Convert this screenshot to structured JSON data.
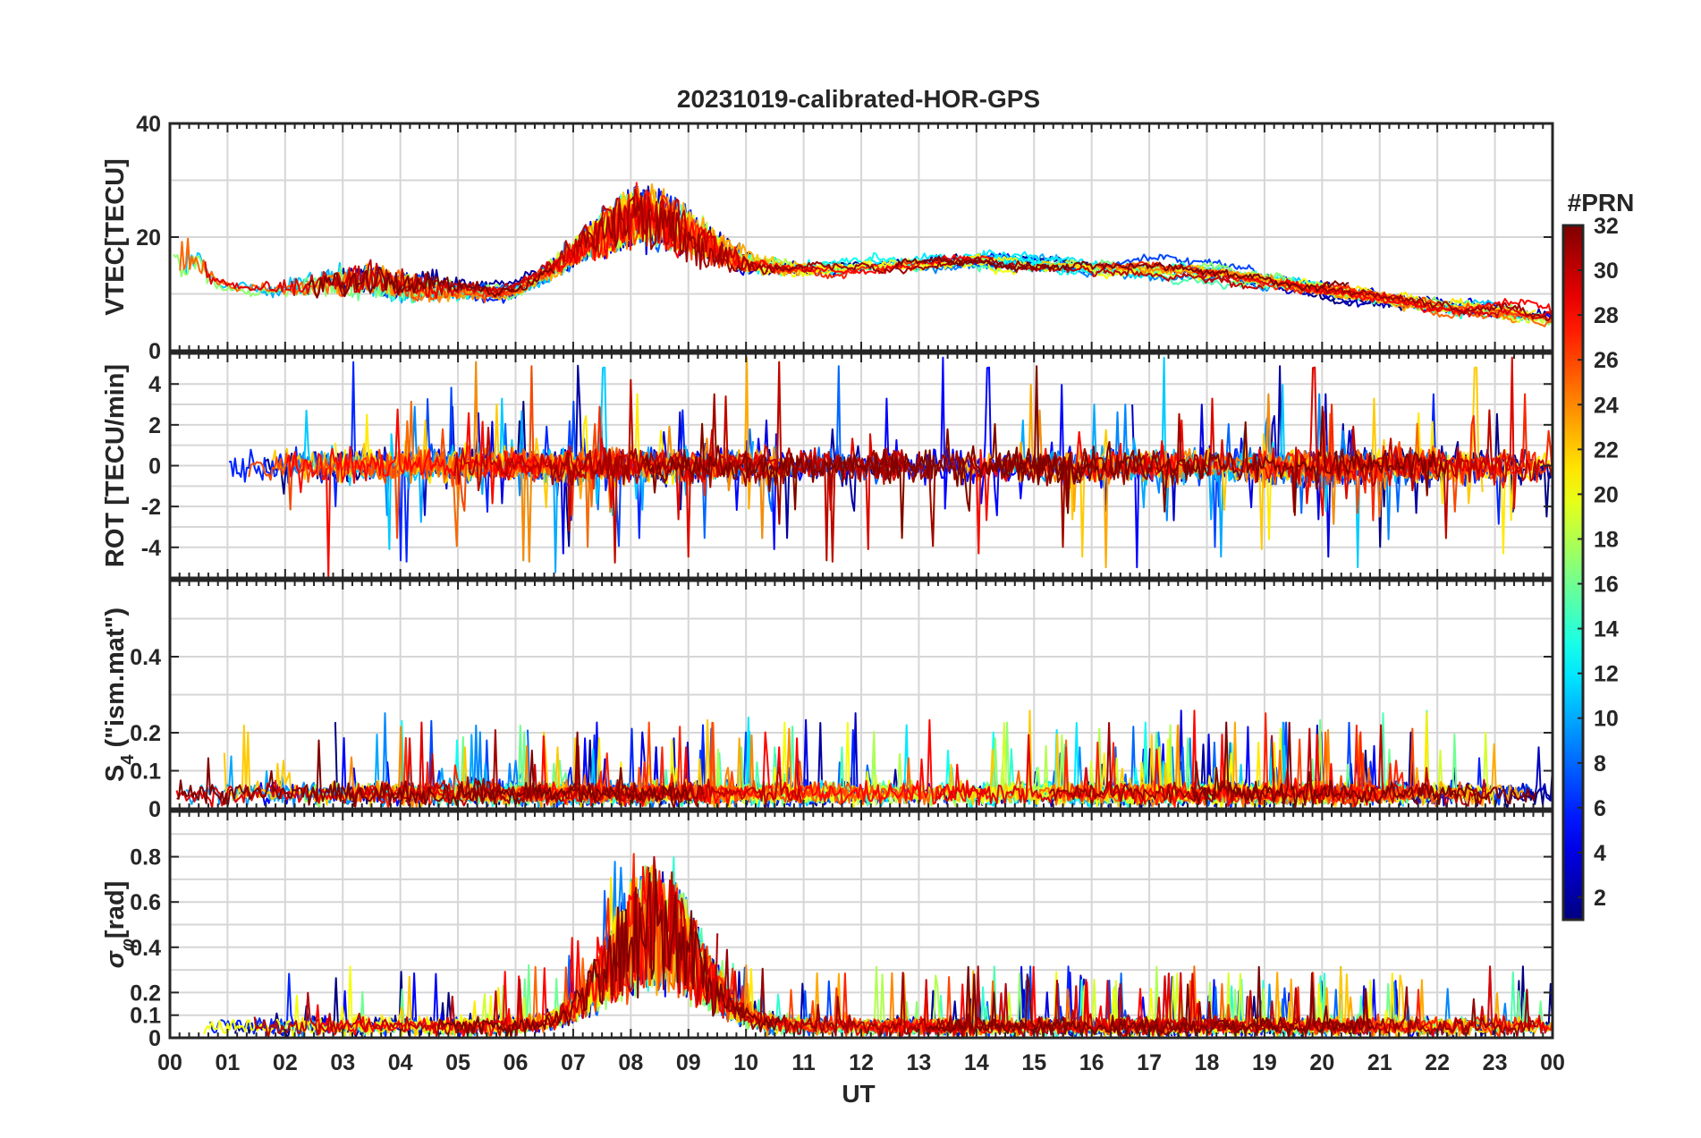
{
  "chart_data": {
    "type": "line",
    "title": "20231019-calibrated-HOR-GPS",
    "xlabel": "UT",
    "x_ticks": [
      "00",
      "01",
      "02",
      "03",
      "04",
      "05",
      "06",
      "07",
      "08",
      "09",
      "10",
      "11",
      "12",
      "13",
      "14",
      "15",
      "16",
      "17",
      "18",
      "19",
      "20",
      "21",
      "22",
      "23",
      "00"
    ],
    "x_range_hours": [
      0,
      24
    ],
    "panels": [
      {
        "id": "vtec",
        "ylabel": "VTEC[TECU]",
        "ylim": [
          0,
          40
        ],
        "y_ticks": [
          0,
          20,
          40
        ],
        "y_tick_labels": [
          "0",
          "20",
          "40"
        ],
        "grid_y": [
          10,
          20,
          30
        ],
        "baseline": [
          [
            0,
            12
          ],
          [
            2,
            9
          ],
          [
            4,
            8
          ],
          [
            6,
            10
          ],
          [
            7,
            14
          ],
          [
            8,
            16
          ],
          [
            10,
            14
          ],
          [
            12,
            15
          ],
          [
            14,
            16
          ],
          [
            16,
            15
          ],
          [
            18,
            14
          ],
          [
            20,
            11
          ],
          [
            22,
            8
          ],
          [
            24,
            6
          ]
        ],
        "noise": 2.0,
        "bursts": [
          {
            "center": 8.3,
            "width": 1.4,
            "amp": 10
          },
          {
            "center": 3.5,
            "width": 1.5,
            "amp": 5
          },
          {
            "center": 0.3,
            "width": 0.4,
            "amp": 6
          }
        ],
        "clip": true
      },
      {
        "id": "rot",
        "ylabel": "ROT [TECU/min]",
        "ylim": [
          -5.5,
          5.5
        ],
        "y_ticks": [
          -4,
          -2,
          0,
          2,
          4
        ],
        "y_tick_labels": [
          "-4",
          "-2",
          "0",
          "2",
          "4"
        ],
        "grid_y": [
          -4,
          -3,
          -2,
          -1,
          0,
          1,
          2,
          3,
          4
        ],
        "baseline": [
          [
            0,
            0
          ],
          [
            24,
            0
          ]
        ],
        "noise": 0.8,
        "spike_rate": 0.05,
        "spike_amp": 5,
        "clip": true
      },
      {
        "id": "s4",
        "ylabel": "S4 (\"ism.mat\")",
        "ylabel_main": "S",
        "ylabel_sub": "4",
        "ylabel_rest": " (\"ism.mat\")",
        "ylim": [
          0,
          0.6
        ],
        "y_ticks": [
          0,
          0.1,
          0.2,
          0.4
        ],
        "y_tick_labels": [
          "0",
          "0.1",
          "0.2",
          "0.4"
        ],
        "grid_y": [
          0.1,
          0.2,
          0.3,
          0.4,
          0.5
        ],
        "baseline": [
          [
            0,
            0.04
          ],
          [
            24,
            0.04
          ]
        ],
        "noise": 0.03,
        "positive": true,
        "spike_rate": 0.03,
        "spike_amp": 0.2,
        "clip": true
      },
      {
        "id": "sigma_phi",
        "ylabel": "σφ[rad]",
        "ylabel_main": "σ",
        "ylabel_sub": "φ",
        "ylabel_rest": "[rad]",
        "ylim": [
          0,
          1.0
        ],
        "y_ticks": [
          0,
          0.1,
          0.2,
          0.4,
          0.6,
          0.8
        ],
        "y_tick_labels": [
          "0",
          "0.1",
          "0.2",
          "0.4",
          "0.6",
          "0.8"
        ],
        "grid_y": [
          0.1,
          0.2,
          0.3,
          0.4,
          0.5,
          0.6,
          0.7,
          0.8,
          0.9
        ],
        "baseline": [
          [
            0,
            0.05
          ],
          [
            24,
            0.05
          ]
        ],
        "noise": 0.04,
        "positive": true,
        "spike_rate": 0.03,
        "spike_amp": 0.25,
        "bursts": [
          {
            "center": 8.4,
            "width": 1.1,
            "amp": 0.55
          }
        ],
        "clip": true
      }
    ],
    "colorbar": {
      "label": "#PRN",
      "range": [
        1,
        32
      ],
      "ticks": [
        2,
        4,
        6,
        8,
        10,
        12,
        14,
        16,
        18,
        20,
        22,
        24,
        26,
        28,
        30,
        32
      ],
      "tick_labels": [
        "2",
        "4",
        "6",
        "8",
        "10",
        "12",
        "14",
        "16",
        "18",
        "20",
        "22",
        "24",
        "26",
        "28",
        "30",
        "32"
      ],
      "colormap": "jet"
    },
    "series_prn": [
      1,
      2,
      3,
      4,
      5,
      6,
      7,
      8,
      9,
      10,
      11,
      12,
      13,
      14,
      15,
      16,
      17,
      18,
      19,
      20,
      21,
      22,
      23,
      24,
      25,
      26,
      27,
      28,
      29,
      30,
      31,
      32
    ]
  }
}
